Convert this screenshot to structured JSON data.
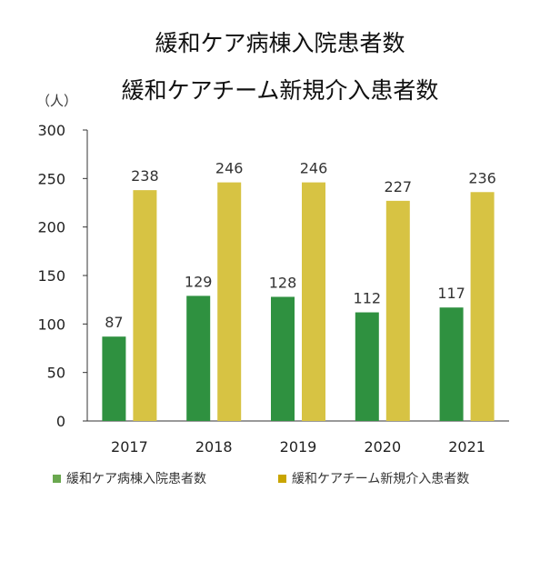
{
  "chart_data": {
    "type": "bar",
    "title": "緩和ケア病棟入院患者数",
    "subtitle": "緩和ケアチーム新規介入患者数",
    "ylabel": "（人）",
    "xlabel": "",
    "ylim": [
      0,
      300
    ],
    "yticks": [
      0,
      50,
      100,
      150,
      200,
      250,
      300
    ],
    "categories": [
      "2017",
      "2018",
      "2019",
      "2020",
      "2021"
    ],
    "series": [
      {
        "name": "緩和ケア病棟入院患者数",
        "color": "#2f9140",
        "values": [
          87,
          129,
          128,
          112,
          117
        ]
      },
      {
        "name": "緩和ケアチーム新規介入患者数",
        "color": "#d7c343",
        "values": [
          238,
          246,
          246,
          227,
          236
        ]
      }
    ],
    "legend_colors": [
      "#6aa84f",
      "#c9a500"
    ],
    "legend": "bottom",
    "grid": false
  }
}
